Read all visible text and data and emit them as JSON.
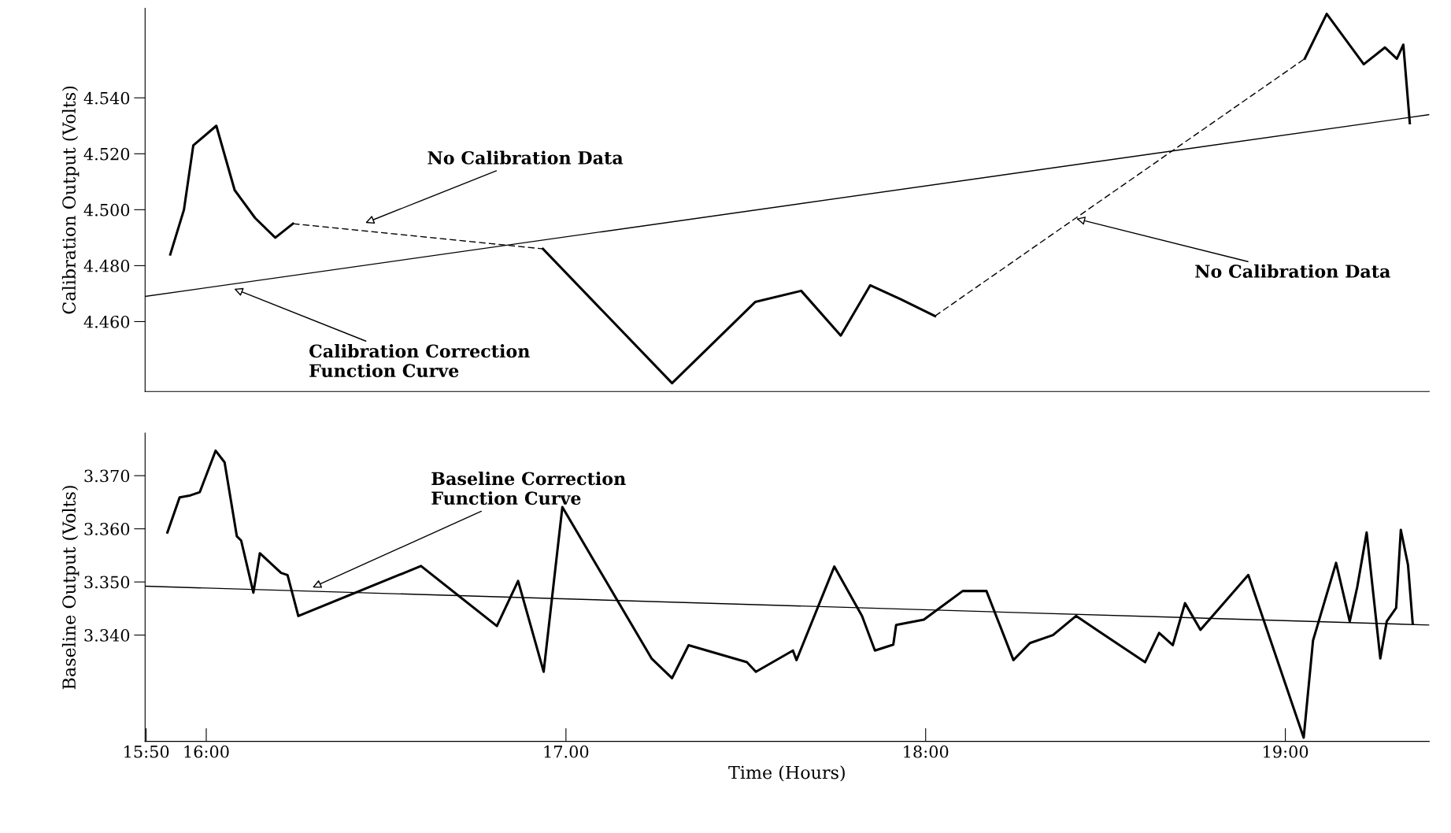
{
  "chart_data": [
    {
      "type": "line",
      "ylabel": "Calibration Output (Volts)",
      "xlim": [
        15.83,
        19.4
      ],
      "ylim": [
        4.435,
        4.572
      ],
      "tick_labels": "y",
      "yticks": [
        {
          "value": 4.46,
          "label": "4.460"
        },
        {
          "value": 4.48,
          "label": "4.480"
        },
        {
          "value": 4.5,
          "label": "4.500"
        },
        {
          "value": 4.52,
          "label": "4.520"
        },
        {
          "value": 4.54,
          "label": "4.540"
        }
      ],
      "series": [
        {
          "color": "#000000",
          "line_style": "solid",
          "x": [
            15.9,
            15.938,
            15.964,
            16.028,
            16.079,
            16.136,
            16.192,
            16.241
          ],
          "values": [
            4.484,
            4.5,
            4.523,
            4.53,
            4.507,
            4.497,
            4.49,
            4.495
          ]
        },
        {
          "color": "#000000",
          "line_style": "dashed",
          "x": [
            16.241,
            16.936
          ],
          "values": [
            4.495,
            4.486
          ]
        },
        {
          "color": "#000000",
          "line_style": "solid",
          "x": [
            16.936,
            17.295,
            17.526,
            17.654,
            17.764,
            17.846,
            17.931,
            18.026
          ],
          "values": [
            4.486,
            4.438,
            4.467,
            4.471,
            4.455,
            4.473,
            4.468,
            4.462
          ]
        },
        {
          "color": "#000000",
          "line_style": "dashed",
          "x": [
            18.026,
            19.054
          ],
          "values": [
            4.462,
            4.554
          ]
        },
        {
          "color": "#000000",
          "line_style": "solid",
          "x": [
            19.054,
            19.115,
            19.218,
            19.277,
            19.31,
            19.328,
            19.346
          ],
          "values": [
            4.554,
            4.57,
            4.552,
            4.558,
            4.554,
            4.559,
            4.531
          ]
        },
        {
          "color": "#000000",
          "line_style": "solid",
          "x": [
            15.83,
            19.4
          ],
          "values": [
            4.469,
            4.534
          ]
        }
      ],
      "annotations": [
        "No Calibration Data",
        {
          "text": "No Calibration Data",
          "x": 18.413,
          "y": 4.497
        },
        {
          "text": "Calibration Correction\nFunction Curve",
          "x": 16.072,
          "y": 4.472
        }
      ]
    },
    {
      "type": "line",
      "xlabel": "Time (Hours)",
      "ylabel": "Baseline Output (Volts)",
      "xlim": [
        15.83,
        19.4
      ],
      "ylim": [
        3.32,
        3.378
      ],
      "xticks": [
        {
          "value": 15.833,
          "label": "15:50"
        },
        {
          "value": 16.0,
          "label": "16:00"
        },
        {
          "value": 17.0,
          "label": "17.00"
        },
        {
          "value": 18.0,
          "label": "18:00"
        },
        {
          "value": 19.0,
          "label": "19:00"
        }
      ],
      "yticks": [
        {
          "value": 3.34,
          "label": "3.340"
        },
        {
          "value": 3.35,
          "label": "3.350"
        },
        {
          "value": 3.36,
          "label": "3.360"
        },
        {
          "value": 3.37,
          "label": "3.370"
        }
      ],
      "series": [
        {
          "color": "#000000",
          "line_style": "solid",
          "x": [
            15.892,
            15.926,
            15.956,
            15.982,
            16.026,
            16.051,
            16.085,
            16.097,
            16.131,
            16.149,
            16.208,
            16.226,
            16.256,
            16.597,
            16.808,
            16.867,
            16.938,
            16.99,
            17.238,
            17.295,
            17.341,
            17.503,
            17.528,
            17.631,
            17.641,
            17.746,
            17.823,
            17.859,
            17.91,
            17.918,
            17.995,
            18.103,
            18.169,
            18.244,
            18.29,
            18.354,
            18.418,
            18.482,
            18.61,
            18.649,
            18.687,
            18.721,
            18.764,
            18.897,
            19.051,
            19.077,
            19.141,
            19.179,
            19.2,
            19.226,
            19.264,
            19.282,
            19.308,
            19.321,
            19.341,
            19.354
          ],
          "values": [
            3.3593,
            3.3659,
            3.3663,
            3.3669,
            3.3747,
            3.3725,
            3.3586,
            3.3578,
            3.348,
            3.3554,
            3.3517,
            3.3513,
            3.3436,
            3.353,
            3.3417,
            3.3502,
            3.3331,
            3.3641,
            3.3356,
            3.3319,
            3.3381,
            3.3349,
            3.3331,
            3.3371,
            3.3353,
            3.3529,
            3.3436,
            3.3371,
            3.3382,
            3.3419,
            3.3429,
            3.3483,
            3.3483,
            3.3353,
            3.3385,
            3.34,
            3.3436,
            3.3407,
            3.3349,
            3.3404,
            3.3381,
            3.346,
            3.341,
            3.3513,
            3.3207,
            3.339,
            3.3536,
            3.3426,
            3.3491,
            3.3593,
            3.3356,
            3.3426,
            3.3451,
            3.3598,
            3.3532,
            3.3422
          ]
        },
        {
          "color": "#000000",
          "line_style": "solid",
          "x": [
            15.83,
            19.4
          ],
          "values": [
            3.3492,
            3.3419
          ]
        }
      ],
      "annotations": [
        {
          "text": "Baseline Correction\nFunction Curve",
          "x": 16.29,
          "y": 3.3488
        }
      ]
    }
  ]
}
